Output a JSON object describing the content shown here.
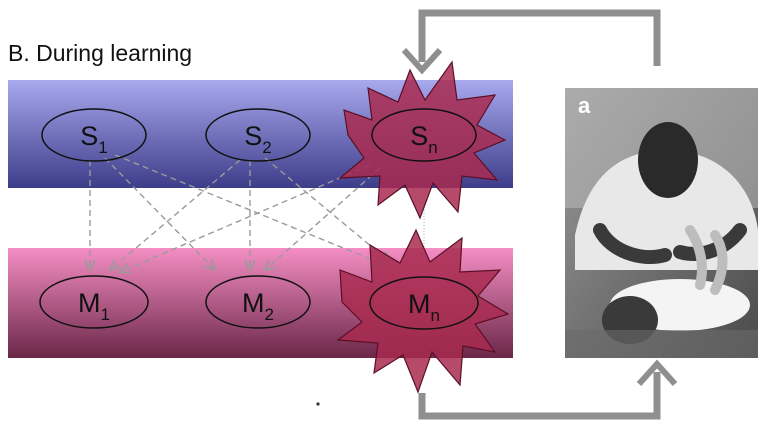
{
  "title": "B. During learning",
  "sensory_nodes": [
    {
      "letter": "S",
      "subscript": "1"
    },
    {
      "letter": "S",
      "subscript": "2"
    },
    {
      "letter": "S",
      "subscript": "n"
    }
  ],
  "motor_nodes": [
    {
      "letter": "M",
      "subscript": "1"
    },
    {
      "letter": "M",
      "subscript": "2"
    },
    {
      "letter": "M",
      "subscript": "n"
    }
  ],
  "photo": {
    "label": "a"
  },
  "colors": {
    "sensory_band_top": "#a9a9ee",
    "sensory_band_bottom": "#3d3d8a",
    "motor_band_top": "#f48ec4",
    "motor_band_bottom": "#6b2748",
    "burst_fill": "#a82a50",
    "burst_stroke": "#5a1026",
    "arrow_gray": "#8f8f8f",
    "dashed_gray": "#9a9a9a"
  },
  "icons": [
    "starburst-highlight",
    "feedback-arrow",
    "dashed-connection-arrow"
  ]
}
